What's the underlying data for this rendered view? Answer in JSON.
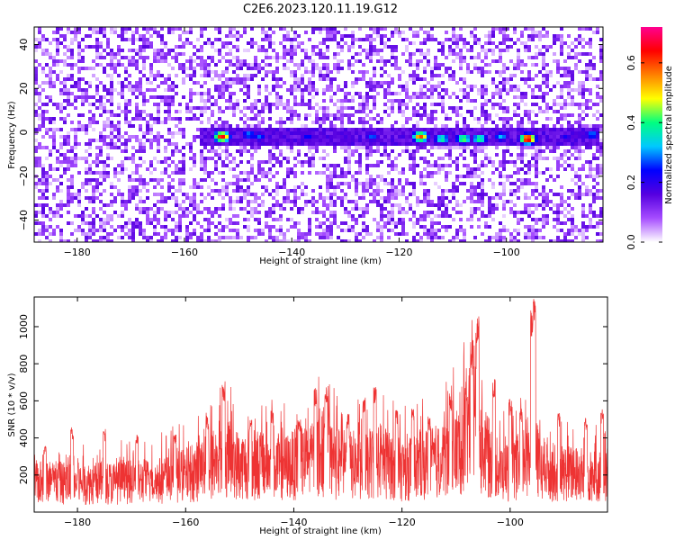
{
  "title": "C2E6.2023.120.11.19.G12",
  "chart_data": [
    {
      "type": "heatmap",
      "xlabel": "Height of straight line (km)",
      "ylabel": "Frequency (Hz)",
      "xlim": [
        -188,
        -82
      ],
      "ylim": [
        -50,
        48
      ],
      "x_ticks": [
        -180,
        -160,
        -140,
        -120,
        -100
      ],
      "y_ticks": [
        -40,
        -20,
        0,
        20,
        40
      ],
      "colorbar": {
        "label": "Normalized spectral amplitude",
        "range": [
          0.0,
          0.72
        ],
        "ticks": [
          0.0,
          0.2,
          0.4,
          0.6
        ],
        "tick_labels": [
          "0.0",
          "0.2",
          "0.4",
          "0.6"
        ],
        "colors": [
          "#ffffff",
          "#a64dff",
          "#5500e0",
          "#0000ff",
          "#00c8ff",
          "#00ff80",
          "#ffff00",
          "#ff8000",
          "#ff0000",
          "#ff0090"
        ]
      },
      "background": {
        "level": 0.12,
        "note": "random speckle at 0.02-0.15 across the full domain"
      },
      "signal_band": {
        "center_frequency": -2,
        "x_start": -157,
        "x_end": -83,
        "hotspots": [
          {
            "x": -153,
            "f": -2,
            "value": 0.66
          },
          {
            "x": -148,
            "f": -1,
            "value": 0.3
          },
          {
            "x": -146,
            "f": -2,
            "value": 0.28
          },
          {
            "x": -137,
            "f": -2,
            "value": 0.25
          },
          {
            "x": -125,
            "f": -2,
            "value": 0.28
          },
          {
            "x": -116,
            "f": -2,
            "value": 0.6
          },
          {
            "x": -112,
            "f": -3,
            "value": 0.4
          },
          {
            "x": -108,
            "f": -3,
            "value": 0.45
          },
          {
            "x": -105,
            "f": -3,
            "value": 0.42
          },
          {
            "x": -101,
            "f": -2,
            "value": 0.32
          },
          {
            "x": -96,
            "f": -3,
            "value": 0.7
          },
          {
            "x": -89,
            "f": -2,
            "value": 0.22
          },
          {
            "x": -84,
            "f": -1,
            "value": 0.3
          }
        ]
      }
    },
    {
      "type": "line",
      "xlabel": "Height of straight line (km)",
      "ylabel": "SNR (10 * v/v)",
      "xlim": [
        -188,
        -82
      ],
      "ylim": [
        0,
        1160
      ],
      "x_ticks": [
        -180,
        -160,
        -140,
        -120,
        -100
      ],
      "y_ticks": [
        200,
        400,
        600,
        800,
        1000
      ],
      "series": [
        {
          "color": "#ee3333",
          "baseline_points": [
            [
              -188,
              160
            ],
            [
              -180,
              155
            ],
            [
              -170,
              160
            ],
            [
              -165,
              170
            ],
            [
              -160,
              200
            ],
            [
              -156,
              240
            ],
            [
              -153,
              310
            ],
            [
              -150,
              250
            ],
            [
              -146,
              260
            ],
            [
              -142,
              240
            ],
            [
              -138,
              270
            ],
            [
              -135,
              320
            ],
            [
              -132,
              260
            ],
            [
              -128,
              250
            ],
            [
              -124,
              280
            ],
            [
              -120,
              230
            ],
            [
              -116,
              260
            ],
            [
              -112,
              280
            ],
            [
              -109,
              350
            ],
            [
              -107,
              560
            ],
            [
              -105,
              330
            ],
            [
              -102,
              220
            ],
            [
              -99,
              230
            ],
            [
              -96,
              330
            ],
            [
              -94,
              220
            ],
            [
              -90,
              210
            ],
            [
              -86,
              200
            ],
            [
              -82,
              190
            ]
          ],
          "peaks": [
            [
              -186,
              360
            ],
            [
              -181,
              460
            ],
            [
              -175,
              450
            ],
            [
              -169,
              420
            ],
            [
              -162,
              420
            ],
            [
              -156,
              520
            ],
            [
              -153,
              690
            ],
            [
              -148,
              520
            ],
            [
              -144,
              560
            ],
            [
              -139,
              510
            ],
            [
              -136,
              670
            ],
            [
              -134,
              680
            ],
            [
              -130,
              530
            ],
            [
              -127,
              620
            ],
            [
              -125,
              690
            ],
            [
              -121,
              560
            ],
            [
              -118,
              560
            ],
            [
              -115,
              520
            ],
            [
              -111,
              640
            ],
            [
              -107,
              850
            ],
            [
              -106,
              1060
            ],
            [
              -103,
              720
            ],
            [
              -100,
              610
            ],
            [
              -98,
              560
            ],
            [
              -96,
              1110
            ],
            [
              -95.5,
              1160
            ],
            [
              -91,
              540
            ],
            [
              -86,
              520
            ],
            [
              -83,
              560
            ]
          ]
        }
      ]
    }
  ]
}
